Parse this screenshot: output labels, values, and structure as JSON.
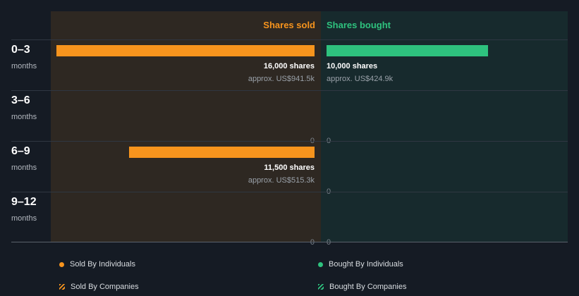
{
  "chart_data": {
    "type": "bar",
    "orientation": "horizontal-diverging",
    "categories": [
      {
        "num": "0–3",
        "unit": "months"
      },
      {
        "num": "3–6",
        "unit": "months"
      },
      {
        "num": "6–9",
        "unit": "months"
      },
      {
        "num": "9–12",
        "unit": "months"
      }
    ],
    "series": [
      {
        "name": "Shares sold",
        "color": "#f7941d",
        "values": [
          16000,
          0,
          11500,
          0
        ],
        "shares_text": [
          "16,000 shares",
          "0",
          "11,500 shares",
          "0"
        ],
        "approx_text": [
          "approx. US$941.5k",
          "",
          "approx. US$515.3k",
          ""
        ]
      },
      {
        "name": "Shares bought",
        "color": "#2ec27e",
        "values": [
          10000,
          0,
          0,
          0
        ],
        "shares_text": [
          "10,000 shares",
          "0",
          "0",
          "0"
        ],
        "approx_text": [
          "approx. US$424.9k",
          "",
          "",
          ""
        ]
      }
    ],
    "xlim": [
      0,
      16000
    ]
  },
  "legend": [
    {
      "label": "Sold By Individuals",
      "color": "#f7941d",
      "icon": "dot-icon"
    },
    {
      "label": "Bought By Individuals",
      "color": "#2ec27e",
      "icon": "dot-icon"
    },
    {
      "label": "Sold By Companies",
      "color": "#f7941d",
      "icon": "hatched-icon"
    },
    {
      "label": "Bought By Companies",
      "color": "#2ec27e",
      "icon": "hatched-icon"
    }
  ]
}
